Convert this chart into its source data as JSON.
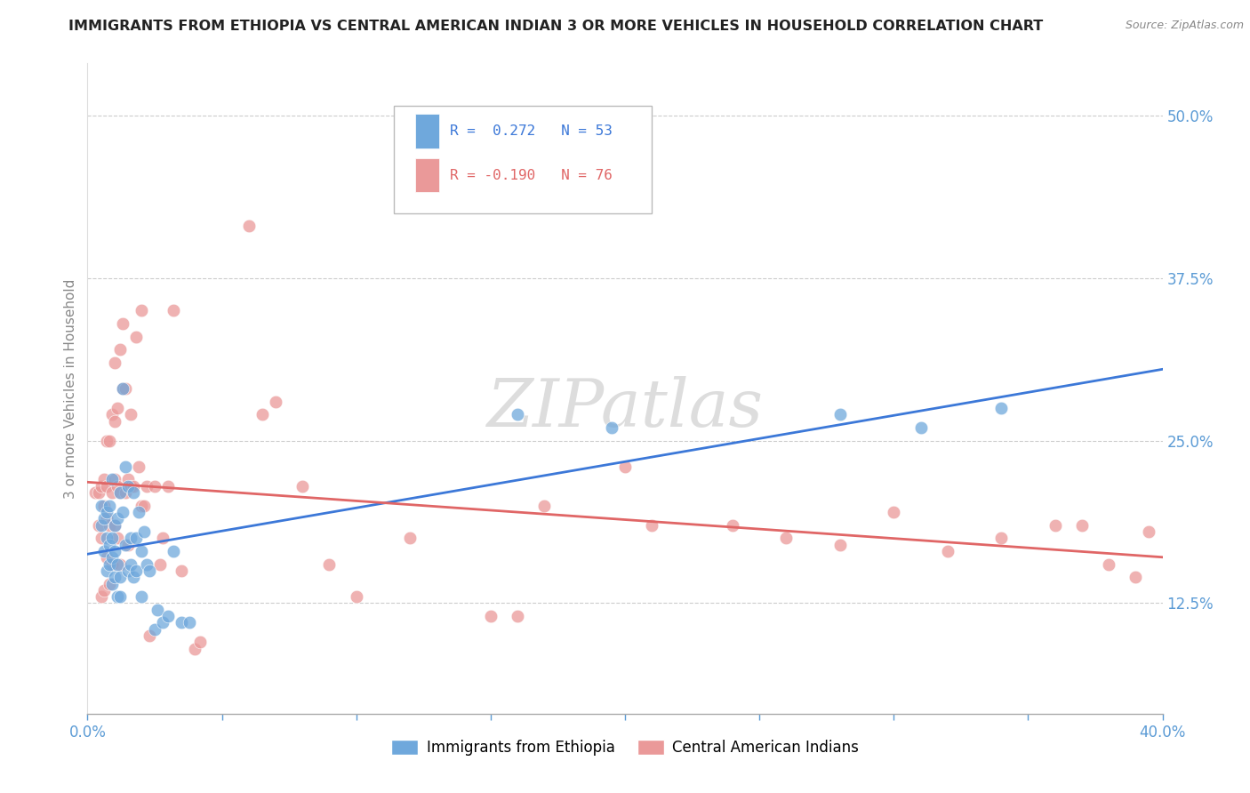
{
  "title": "IMMIGRANTS FROM ETHIOPIA VS CENTRAL AMERICAN INDIAN 3 OR MORE VEHICLES IN HOUSEHOLD CORRELATION CHART",
  "source": "Source: ZipAtlas.com",
  "ylabel": "3 or more Vehicles in Household",
  "xlim": [
    0.0,
    0.4
  ],
  "ylim": [
    0.04,
    0.54
  ],
  "xtick_positions": [
    0.0,
    0.05,
    0.1,
    0.15,
    0.2,
    0.25,
    0.3,
    0.35,
    0.4
  ],
  "xtick_labels": [
    "0.0%",
    "",
    "",
    "",
    "",
    "",
    "",
    "",
    "40.0%"
  ],
  "ytick_vals_right": [
    0.125,
    0.25,
    0.375,
    0.5
  ],
  "ytick_labels_right": [
    "12.5%",
    "25.0%",
    "37.5%",
    "50.0%"
  ],
  "blue_R": 0.272,
  "blue_N": 53,
  "pink_R": -0.19,
  "pink_N": 76,
  "blue_color": "#6fa8dc",
  "pink_color": "#ea9999",
  "blue_line_color": "#3c78d8",
  "pink_line_color": "#e06666",
  "title_color": "#222222",
  "source_color": "#888888",
  "ylabel_color": "#888888",
  "tick_color": "#5b9bd5",
  "grid_color": "#cccccc",
  "legend_edge_color": "#bbbbbb",
  "watermark_color": "#dddddd",
  "blue_scatter_x": [
    0.005,
    0.005,
    0.006,
    0.006,
    0.007,
    0.007,
    0.007,
    0.008,
    0.008,
    0.008,
    0.009,
    0.009,
    0.009,
    0.009,
    0.01,
    0.01,
    0.01,
    0.011,
    0.011,
    0.011,
    0.012,
    0.012,
    0.012,
    0.013,
    0.013,
    0.014,
    0.014,
    0.015,
    0.015,
    0.016,
    0.016,
    0.017,
    0.017,
    0.018,
    0.018,
    0.019,
    0.02,
    0.02,
    0.021,
    0.022,
    0.023,
    0.025,
    0.026,
    0.028,
    0.03,
    0.032,
    0.035,
    0.038,
    0.16,
    0.195,
    0.28,
    0.31,
    0.34
  ],
  "blue_scatter_y": [
    0.185,
    0.2,
    0.165,
    0.19,
    0.15,
    0.175,
    0.195,
    0.155,
    0.17,
    0.2,
    0.14,
    0.16,
    0.175,
    0.22,
    0.145,
    0.165,
    0.185,
    0.13,
    0.155,
    0.19,
    0.13,
    0.145,
    0.21,
    0.195,
    0.29,
    0.17,
    0.23,
    0.15,
    0.215,
    0.155,
    0.175,
    0.145,
    0.21,
    0.15,
    0.175,
    0.195,
    0.13,
    0.165,
    0.18,
    0.155,
    0.15,
    0.105,
    0.12,
    0.11,
    0.115,
    0.165,
    0.11,
    0.11,
    0.27,
    0.26,
    0.27,
    0.26,
    0.275
  ],
  "pink_scatter_x": [
    0.003,
    0.004,
    0.004,
    0.005,
    0.005,
    0.005,
    0.006,
    0.006,
    0.006,
    0.007,
    0.007,
    0.007,
    0.007,
    0.008,
    0.008,
    0.008,
    0.009,
    0.009,
    0.009,
    0.01,
    0.01,
    0.01,
    0.01,
    0.011,
    0.011,
    0.011,
    0.012,
    0.012,
    0.012,
    0.013,
    0.013,
    0.014,
    0.014,
    0.015,
    0.015,
    0.016,
    0.016,
    0.017,
    0.018,
    0.019,
    0.02,
    0.02,
    0.021,
    0.022,
    0.023,
    0.025,
    0.027,
    0.028,
    0.03,
    0.032,
    0.035,
    0.04,
    0.042,
    0.06,
    0.065,
    0.07,
    0.08,
    0.09,
    0.1,
    0.12,
    0.15,
    0.16,
    0.17,
    0.2,
    0.21,
    0.24,
    0.26,
    0.28,
    0.3,
    0.32,
    0.34,
    0.36,
    0.37,
    0.38,
    0.39,
    0.395
  ],
  "pink_scatter_y": [
    0.21,
    0.185,
    0.21,
    0.13,
    0.175,
    0.215,
    0.135,
    0.2,
    0.22,
    0.16,
    0.19,
    0.215,
    0.25,
    0.14,
    0.185,
    0.25,
    0.155,
    0.21,
    0.27,
    0.185,
    0.22,
    0.265,
    0.31,
    0.175,
    0.215,
    0.275,
    0.155,
    0.21,
    0.32,
    0.29,
    0.34,
    0.21,
    0.29,
    0.17,
    0.22,
    0.215,
    0.27,
    0.215,
    0.33,
    0.23,
    0.2,
    0.35,
    0.2,
    0.215,
    0.1,
    0.215,
    0.155,
    0.175,
    0.215,
    0.35,
    0.15,
    0.09,
    0.095,
    0.415,
    0.27,
    0.28,
    0.215,
    0.155,
    0.13,
    0.175,
    0.115,
    0.115,
    0.2,
    0.23,
    0.185,
    0.185,
    0.175,
    0.17,
    0.195,
    0.165,
    0.175,
    0.185,
    0.185,
    0.155,
    0.145,
    0.18
  ]
}
